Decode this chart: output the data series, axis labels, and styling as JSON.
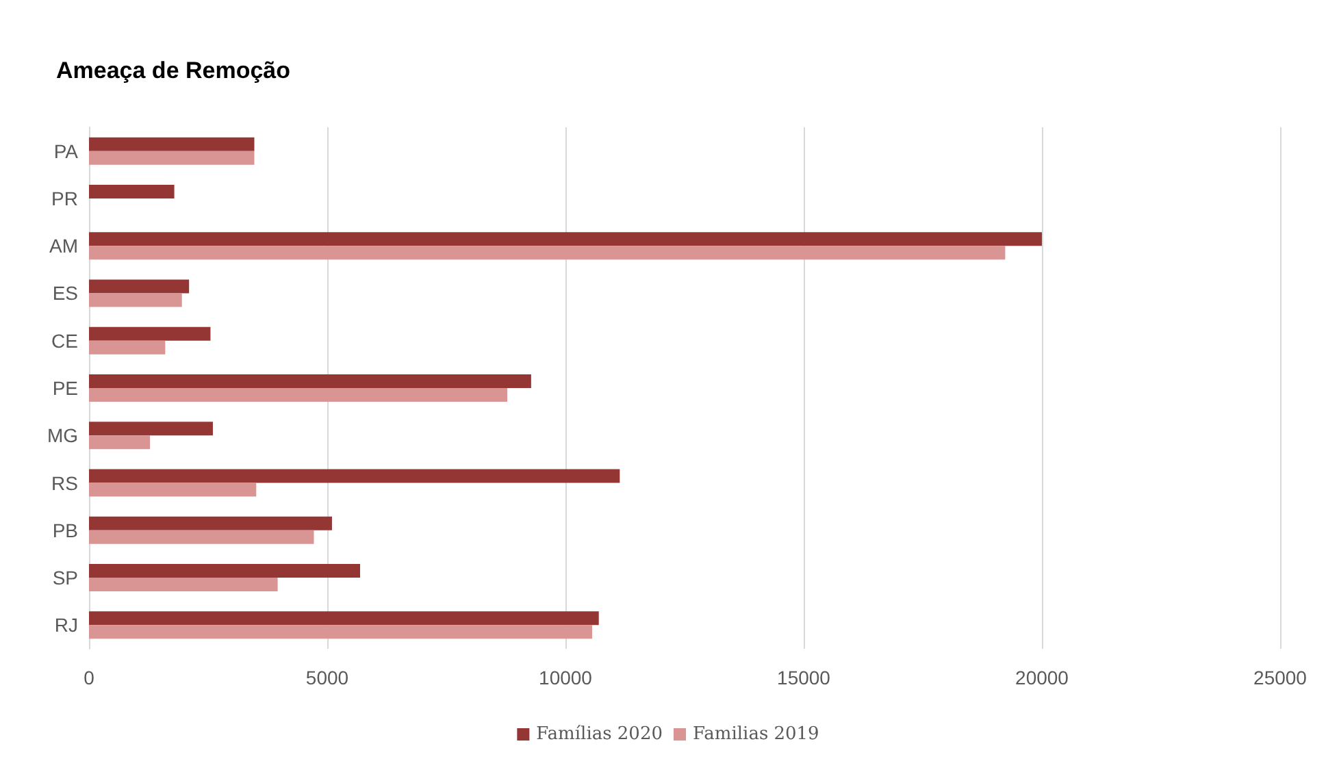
{
  "chart_data": {
    "type": "bar",
    "orientation": "horizontal",
    "title": "Ameaça de Remoção",
    "categories": [
      "PA",
      "PR",
      "AM",
      "ES",
      "CE",
      "PE",
      "MG",
      "RS",
      "PB",
      "SP",
      "RJ"
    ],
    "series": [
      {
        "name": "Famílias 2020",
        "color": "#943634",
        "values": [
          3470,
          1790,
          20000,
          2100,
          2550,
          9280,
          2600,
          11140,
          5100,
          5690,
          10700
        ]
      },
      {
        "name": "Familias 2019",
        "color": "#d99594",
        "values": [
          3470,
          null,
          19230,
          1950,
          1600,
          8780,
          1280,
          3510,
          4720,
          3960,
          10560
        ]
      }
    ],
    "xlim": [
      0,
      25000
    ],
    "xticks": [
      0,
      5000,
      10000,
      15000,
      20000,
      25000
    ],
    "grid": "x",
    "legend": "bottom"
  }
}
